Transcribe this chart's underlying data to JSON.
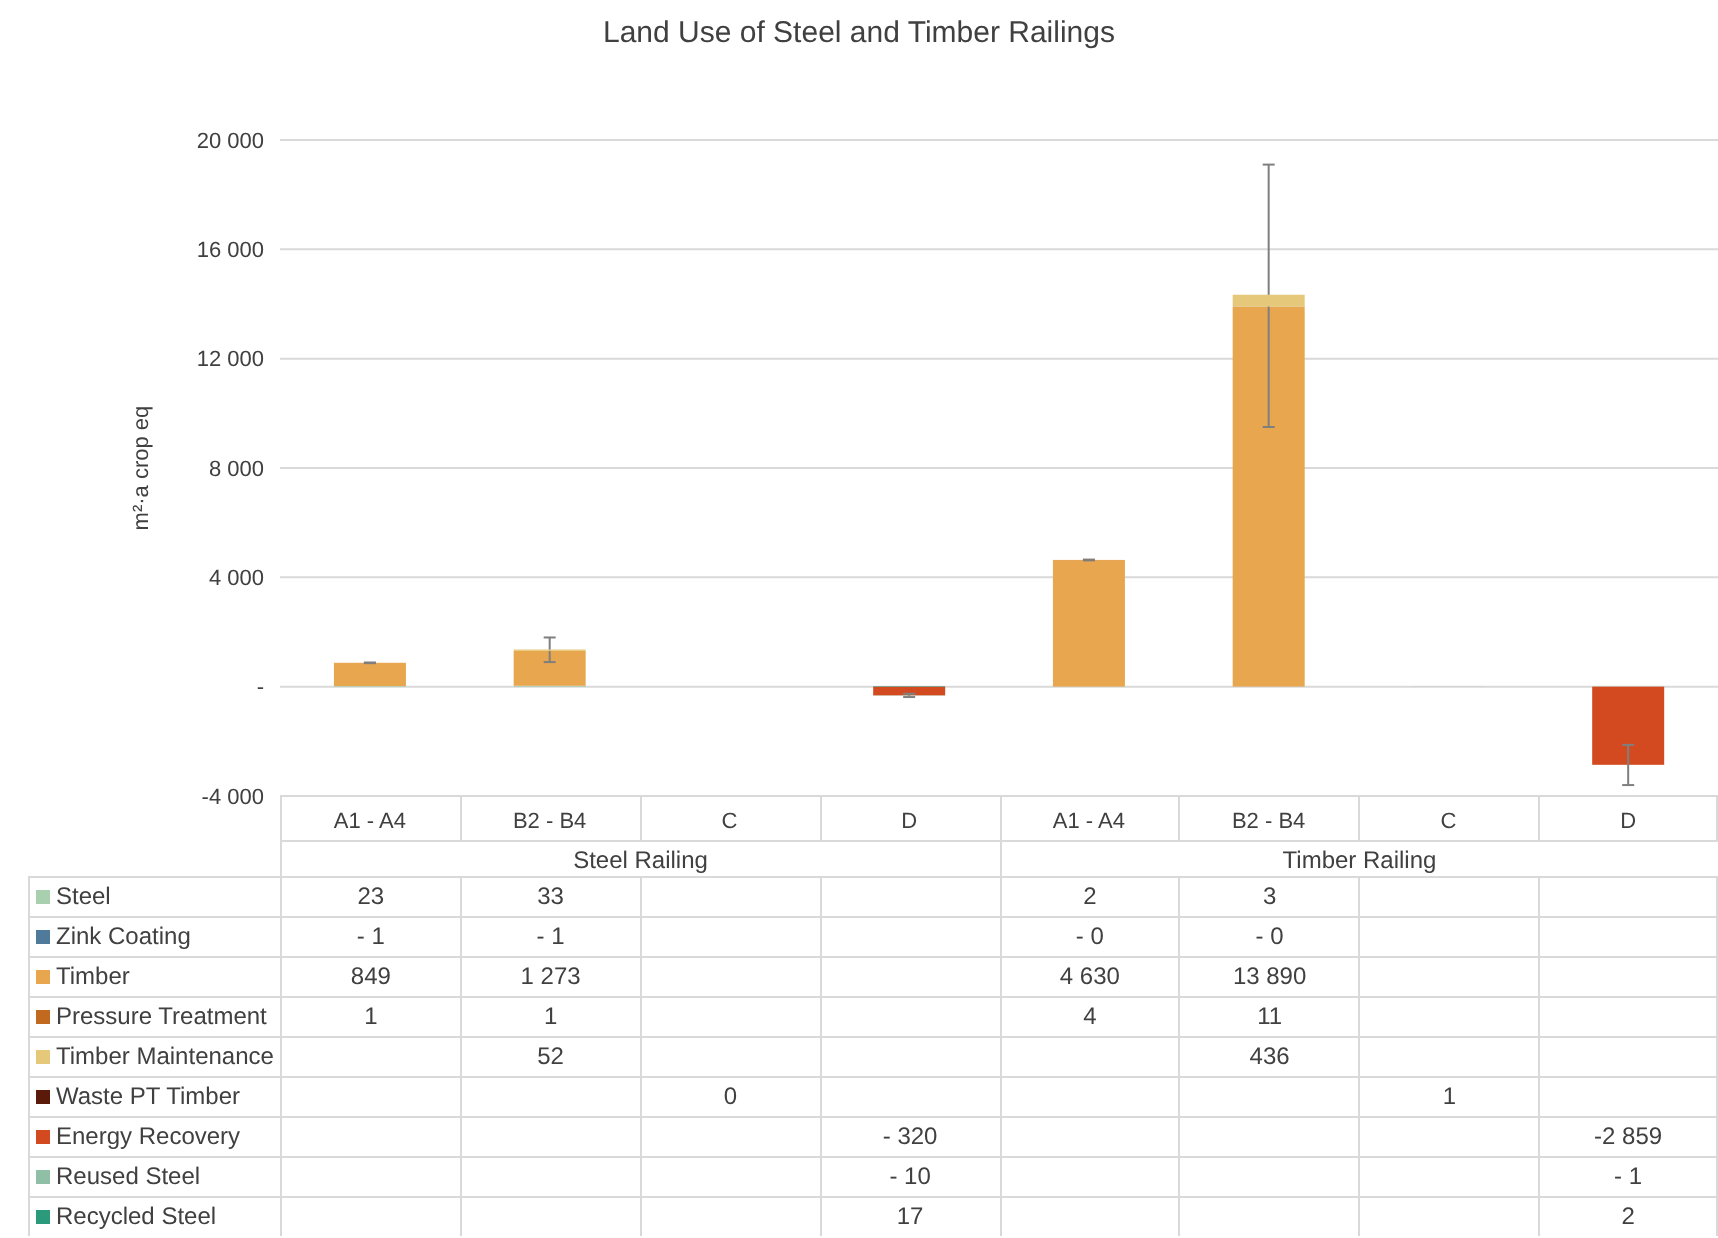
{
  "chart_data": {
    "type": "bar",
    "stacked": true,
    "title": "Land Use of Steel and Timber Railings",
    "ylabel": "m²·a crop eq",
    "categories": [
      "A1 - A4",
      "B2 - B4",
      "C",
      "D",
      "A1 - A4",
      "B2 - B4",
      "C",
      "D"
    ],
    "annotations": [
      "Steel Railing",
      "Timber Railing"
    ],
    "ylim": [
      -4000,
      20000
    ],
    "yticks": [
      {
        "value": -4000,
        "label": "-4 000"
      },
      {
        "value": 0,
        "label": "-"
      },
      {
        "value": 4000,
        "label": "4 000"
      },
      {
        "value": 8000,
        "label": "8 000"
      },
      {
        "value": 12000,
        "label": "12 000"
      },
      {
        "value": 16000,
        "label": "16 000"
      },
      {
        "value": 20000,
        "label": "20 000"
      }
    ],
    "grid": "y",
    "legend": "bottom",
    "series": [
      {
        "name": "Steel",
        "color": "#a9d0ae",
        "values": [
          23,
          33,
          null,
          null,
          2,
          3,
          null,
          null
        ],
        "value_labels": [
          "23",
          "33",
          null,
          null,
          "2",
          "3",
          null,
          null
        ]
      },
      {
        "name": "Zink Coating",
        "color": "#4f7a99",
        "values": [
          -1,
          -1,
          null,
          null,
          0,
          0,
          null,
          null
        ],
        "value_labels": [
          "- 1",
          "- 1",
          null,
          null,
          "- 0",
          "- 0",
          null,
          null
        ]
      },
      {
        "name": "Timber",
        "color": "#e8a64f",
        "values": [
          849,
          1273,
          null,
          null,
          4630,
          13890,
          null,
          null
        ],
        "value_labels": [
          "849",
          "1 273",
          null,
          null,
          "4 630",
          "13 890",
          null,
          null
        ],
        "errors": [
          [
            860,
            885
          ],
          [
            900,
            1800
          ],
          null,
          null,
          [
            4620,
            4650
          ],
          [
            9500,
            19100
          ],
          null,
          null
        ]
      },
      {
        "name": "Pressure Treatment",
        "color": "#c0691f",
        "values": [
          1,
          1,
          null,
          null,
          4,
          11,
          null,
          null
        ],
        "value_labels": [
          "1",
          "1",
          null,
          null,
          "4",
          "11",
          null,
          null
        ]
      },
      {
        "name": "Timber Maintenance",
        "color": "#e6c87a",
        "values": [
          null,
          52,
          null,
          null,
          null,
          436,
          null,
          null
        ],
        "value_labels": [
          null,
          "52",
          null,
          null,
          null,
          "436",
          null,
          null
        ]
      },
      {
        "name": "Waste PT Timber",
        "color": "#5a1a0a",
        "values": [
          null,
          null,
          0,
          null,
          null,
          null,
          1,
          null
        ],
        "value_labels": [
          null,
          null,
          "0",
          null,
          null,
          null,
          "1",
          null
        ]
      },
      {
        "name": "Energy Recovery",
        "color": "#d44a20",
        "values": [
          null,
          null,
          null,
          -320,
          null,
          null,
          null,
          -2859
        ],
        "value_labels": [
          null,
          null,
          null,
          "- 320",
          null,
          null,
          null,
          "-2 859"
        ],
        "errors": [
          null,
          null,
          null,
          [
            -380,
            -260
          ],
          null,
          null,
          null,
          [
            -3600,
            -2130
          ]
        ]
      },
      {
        "name": "Reused Steel",
        "color": "#8fbfa6",
        "values": [
          null,
          null,
          null,
          -10,
          null,
          null,
          null,
          -1
        ],
        "value_labels": [
          null,
          null,
          null,
          "- 10",
          null,
          null,
          null,
          "- 1"
        ]
      },
      {
        "name": "Recycled Steel",
        "color": "#2a9a7a",
        "values": [
          null,
          null,
          null,
          17,
          null,
          null,
          null,
          2
        ],
        "value_labels": [
          null,
          null,
          null,
          "17",
          null,
          null,
          null,
          "2"
        ]
      }
    ]
  }
}
